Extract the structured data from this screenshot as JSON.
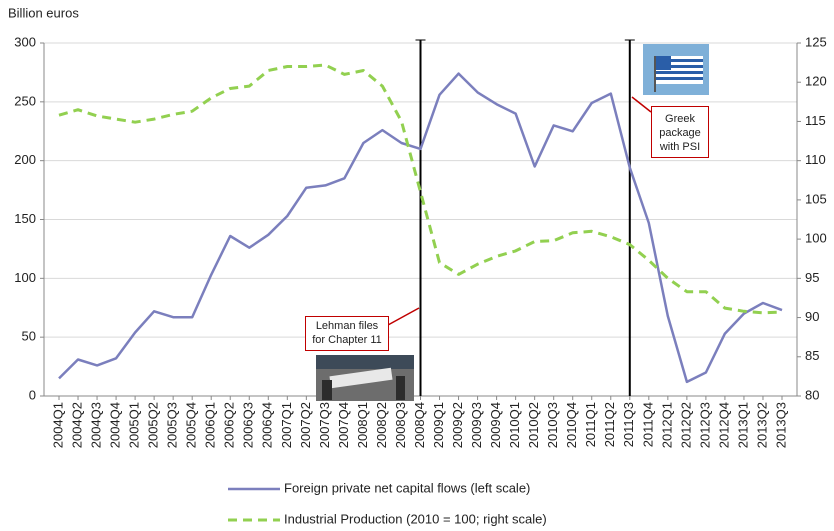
{
  "chart_data": {
    "type": "line",
    "y_label": "Billion euros",
    "categories": [
      "2004Q1",
      "2004Q2",
      "2004Q3",
      "2004Q4",
      "2005Q1",
      "2005Q2",
      "2005Q3",
      "2005Q4",
      "2006Q1",
      "2006Q2",
      "2006Q3",
      "2006Q4",
      "2007Q1",
      "2007Q2",
      "2007Q3",
      "2007Q4",
      "2008Q1",
      "2008Q2",
      "2008Q3",
      "2008Q4",
      "2009Q1",
      "2009Q2",
      "2009Q3",
      "2009Q4",
      "2010Q1",
      "2010Q2",
      "2010Q3",
      "2010Q4",
      "2011Q1",
      "2011Q2",
      "2011Q3",
      "2011Q4",
      "2012Q1",
      "2012Q2",
      "2012Q3",
      "2012Q4",
      "2013Q1",
      "2013Q2",
      "2013Q3"
    ],
    "series": [
      {
        "name": "Foreign private net capital flows (left scale)",
        "color": "#7b7fbd",
        "values": [
          15,
          31,
          26,
          32,
          54,
          72,
          67,
          67,
          103,
          136,
          126,
          137,
          153,
          177,
          179,
          185,
          215,
          226,
          215,
          210,
          256,
          274,
          258,
          248,
          240,
          195,
          230,
          225,
          249,
          257,
          194,
          147,
          68,
          12,
          20,
          53,
          70,
          79,
          73
        ]
      },
      {
        "name": "Industrial Production (2010 = 100; right scale)",
        "color": "#92d050",
        "axis": "y2",
        "dashed": true,
        "values": [
          115.8,
          116.5,
          115.7,
          115.3,
          114.9,
          115.3,
          115.9,
          116.3,
          118,
          119.2,
          119.5,
          121.5,
          122,
          122,
          122.2,
          121,
          121.5,
          119.5,
          115,
          106,
          97,
          95.5,
          96.8,
          97.8,
          98.5,
          99.7,
          99.8,
          100.8,
          101,
          100.3,
          99.3,
          97.3,
          95,
          93.3,
          93.3,
          91.2,
          90.8,
          90.6,
          90.7
        ]
      }
    ],
    "ylim": [
      0,
      300
    ],
    "yticks": [
      0,
      50,
      100,
      150,
      200,
      250,
      300
    ],
    "y2lim": [
      80,
      125
    ],
    "y2ticks": [
      80,
      85,
      90,
      95,
      100,
      105,
      110,
      115,
      120,
      125
    ],
    "grid": true,
    "annotations": [
      "Lehman files for Chapter 11",
      "Greek package with PSI"
    ]
  }
}
